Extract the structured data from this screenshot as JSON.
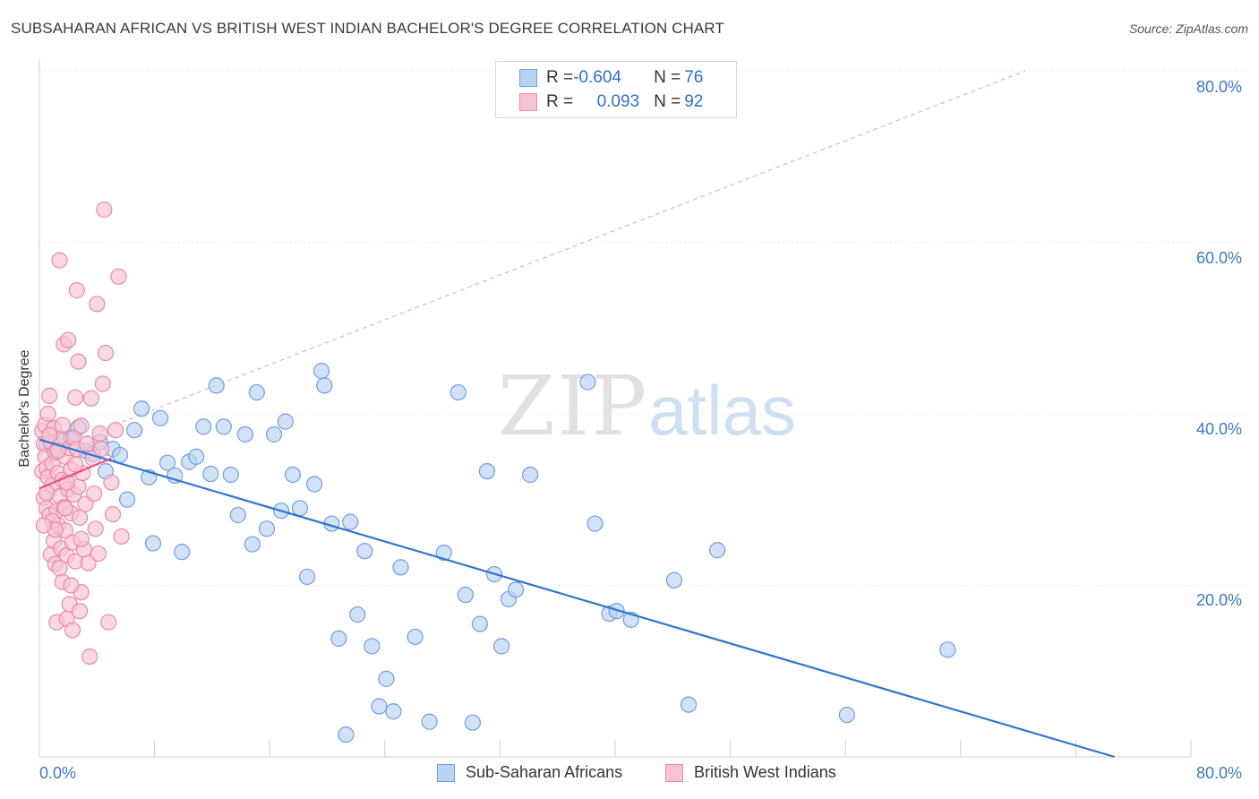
{
  "header": {
    "title": "SUBSAHARAN AFRICAN VS BRITISH WEST INDIAN BACHELOR'S DEGREE CORRELATION CHART",
    "source": "Source: ZipAtlas.com"
  },
  "watermark": {
    "zip": "ZIP",
    "atlas": "atlas"
  },
  "legend": {
    "rows": [
      {
        "r_label": "R = ",
        "r_value": "-0.604",
        "n_label": "N = ",
        "n_value": "76"
      },
      {
        "r_label": "R = ",
        "r_value": "0.093",
        "n_label": "N = ",
        "n_value": "92"
      }
    ]
  },
  "bottom_legend": {
    "series_a": "Sub-Saharan Africans",
    "series_b": "British West Indians"
  },
  "axes": {
    "ylabel": "Bachelor's Degree",
    "x_min_label": "0.0%",
    "x_max_label": "80.0%",
    "y_ticks": [
      "80.0%",
      "60.0%",
      "40.0%",
      "20.0%"
    ]
  },
  "colors": {
    "blue_fill": "#b9d3f3",
    "blue_stroke": "#6f9ee0",
    "blue_line": "#2f74d0",
    "pink_fill": "#f7c3d3",
    "pink_stroke": "#e98aa6",
    "pink_line": "#e2557f",
    "axis_text": "#3b78c6"
  },
  "chart_data": {
    "type": "scatter",
    "xlim": [
      0,
      80
    ],
    "ylim": [
      0,
      80
    ],
    "xlabel": "",
    "ylabel": "Bachelor's Degree",
    "grid": true,
    "series": [
      {
        "name": "Sub-Saharan Africans",
        "R": -0.604,
        "N": 76,
        "trend": [
          [
            0,
            37.0
          ],
          [
            74.7,
            0.0
          ]
        ],
        "points": [
          [
            0.5,
            36.4
          ],
          [
            0.8,
            36.6
          ],
          [
            1.2,
            35.7
          ],
          [
            1.6,
            36.8
          ],
          [
            2.2,
            37.2
          ],
          [
            2.7,
            38.4
          ],
          [
            3.2,
            35.7
          ],
          [
            3.7,
            35.3
          ],
          [
            4.2,
            36.7
          ],
          [
            4.6,
            33.3
          ],
          [
            5.1,
            35.9
          ],
          [
            5.6,
            35.2
          ],
          [
            6.1,
            30.0
          ],
          [
            6.6,
            38.1
          ],
          [
            7.1,
            40.6
          ],
          [
            7.6,
            32.6
          ],
          [
            7.9,
            24.9
          ],
          [
            8.4,
            39.5
          ],
          [
            8.9,
            34.3
          ],
          [
            9.4,
            32.8
          ],
          [
            9.9,
            23.9
          ],
          [
            10.4,
            34.4
          ],
          [
            10.9,
            35.0
          ],
          [
            11.4,
            38.5
          ],
          [
            11.9,
            33.0
          ],
          [
            12.3,
            43.3
          ],
          [
            12.8,
            38.5
          ],
          [
            13.3,
            32.9
          ],
          [
            13.8,
            28.2
          ],
          [
            14.3,
            37.6
          ],
          [
            14.8,
            24.8
          ],
          [
            15.1,
            42.5
          ],
          [
            15.8,
            26.6
          ],
          [
            16.3,
            37.6
          ],
          [
            16.8,
            28.7
          ],
          [
            17.1,
            39.1
          ],
          [
            17.6,
            32.9
          ],
          [
            18.1,
            29.0
          ],
          [
            18.6,
            21.0
          ],
          [
            19.1,
            31.8
          ],
          [
            19.6,
            45.0
          ],
          [
            19.8,
            43.3
          ],
          [
            20.3,
            27.2
          ],
          [
            20.8,
            13.8
          ],
          [
            21.3,
            2.6
          ],
          [
            21.6,
            27.4
          ],
          [
            22.1,
            16.6
          ],
          [
            22.6,
            24.0
          ],
          [
            23.1,
            12.9
          ],
          [
            23.6,
            5.9
          ],
          [
            24.1,
            9.1
          ],
          [
            24.6,
            5.3
          ],
          [
            25.1,
            22.1
          ],
          [
            26.1,
            14.0
          ],
          [
            27.1,
            4.1
          ],
          [
            28.1,
            23.8
          ],
          [
            29.1,
            42.5
          ],
          [
            29.6,
            18.9
          ],
          [
            30.1,
            4.0
          ],
          [
            30.6,
            15.5
          ],
          [
            31.1,
            33.3
          ],
          [
            31.6,
            21.3
          ],
          [
            32.1,
            12.9
          ],
          [
            32.6,
            18.4
          ],
          [
            33.1,
            19.5
          ],
          [
            34.1,
            32.9
          ],
          [
            38.1,
            43.7
          ],
          [
            38.6,
            27.2
          ],
          [
            39.6,
            16.7
          ],
          [
            40.1,
            17.0
          ],
          [
            41.1,
            16.0
          ],
          [
            44.1,
            20.6
          ],
          [
            45.1,
            6.1
          ],
          [
            47.1,
            24.1
          ],
          [
            56.1,
            4.9
          ],
          [
            63.1,
            12.5
          ]
        ]
      },
      {
        "name": "British West Indians",
        "R": 0.093,
        "N": 92,
        "trend": [
          [
            0,
            31.3
          ],
          [
            5.0,
            34.8
          ]
        ],
        "points": [
          [
            0.2,
            38.0
          ],
          [
            0.2,
            33.3
          ],
          [
            0.3,
            30.2
          ],
          [
            0.3,
            36.5
          ],
          [
            0.4,
            35.0
          ],
          [
            0.4,
            38.7
          ],
          [
            0.5,
            33.7
          ],
          [
            0.5,
            29.0
          ],
          [
            0.6,
            40.0
          ],
          [
            0.6,
            32.6
          ],
          [
            0.7,
            28.2
          ],
          [
            0.7,
            42.1
          ],
          [
            0.8,
            23.6
          ],
          [
            0.8,
            36.7
          ],
          [
            0.9,
            34.2
          ],
          [
            0.9,
            31.7
          ],
          [
            1.0,
            25.2
          ],
          [
            1.0,
            38.3
          ],
          [
            1.1,
            22.5
          ],
          [
            1.1,
            35.5
          ],
          [
            1.2,
            28.7
          ],
          [
            1.2,
            15.7
          ],
          [
            1.3,
            27.0
          ],
          [
            1.3,
            33.1
          ],
          [
            1.4,
            30.4
          ],
          [
            1.4,
            57.9
          ],
          [
            1.5,
            24.3
          ],
          [
            1.5,
            37.1
          ],
          [
            1.6,
            20.4
          ],
          [
            1.6,
            32.3
          ],
          [
            1.7,
            29.1
          ],
          [
            1.7,
            48.1
          ],
          [
            1.8,
            26.4
          ],
          [
            1.8,
            35.0
          ],
          [
            1.9,
            23.5
          ],
          [
            1.9,
            16.1
          ],
          [
            2.0,
            31.2
          ],
          [
            2.0,
            48.6
          ],
          [
            2.1,
            36.0
          ],
          [
            2.1,
            17.8
          ],
          [
            2.2,
            28.4
          ],
          [
            2.2,
            33.5
          ],
          [
            2.3,
            25.0
          ],
          [
            2.3,
            14.8
          ],
          [
            2.4,
            30.6
          ],
          [
            2.4,
            37.2
          ],
          [
            2.5,
            22.8
          ],
          [
            2.5,
            41.9
          ],
          [
            2.6,
            35.9
          ],
          [
            2.6,
            54.4
          ],
          [
            2.7,
            46.1
          ],
          [
            2.7,
            31.5
          ],
          [
            2.8,
            27.9
          ],
          [
            2.8,
            17.0
          ],
          [
            2.9,
            19.2
          ],
          [
            2.9,
            38.6
          ],
          [
            3.0,
            33.1
          ],
          [
            3.1,
            24.2
          ],
          [
            3.2,
            29.5
          ],
          [
            3.3,
            36.5
          ],
          [
            3.4,
            22.6
          ],
          [
            3.5,
            11.7
          ],
          [
            3.6,
            41.8
          ],
          [
            3.7,
            34.8
          ],
          [
            3.8,
            30.7
          ],
          [
            3.9,
            26.6
          ],
          [
            4.0,
            52.8
          ],
          [
            4.1,
            23.7
          ],
          [
            4.2,
            37.7
          ],
          [
            4.3,
            35.9
          ],
          [
            4.4,
            43.5
          ],
          [
            4.5,
            63.8
          ],
          [
            4.6,
            47.1
          ],
          [
            4.8,
            15.7
          ],
          [
            5.0,
            32.0
          ],
          [
            5.1,
            28.3
          ],
          [
            5.3,
            38.1
          ],
          [
            5.5,
            56.0
          ],
          [
            5.7,
            25.7
          ],
          [
            0.9,
            27.5
          ],
          [
            1.3,
            35.7
          ],
          [
            1.8,
            29.0
          ],
          [
            2.2,
            20.0
          ],
          [
            0.5,
            30.8
          ],
          [
            1.1,
            26.5
          ],
          [
            1.6,
            38.7
          ],
          [
            2.5,
            34.1
          ],
          [
            0.7,
            37.5
          ],
          [
            1.9,
            32.0
          ],
          [
            1.4,
            22.0
          ],
          [
            0.3,
            27.0
          ],
          [
            2.9,
            25.4
          ]
        ]
      }
    ],
    "reference_line": {
      "style": "dashed",
      "from": [
        0,
        35.3
      ],
      "to": [
        68.5,
        80
      ]
    }
  }
}
